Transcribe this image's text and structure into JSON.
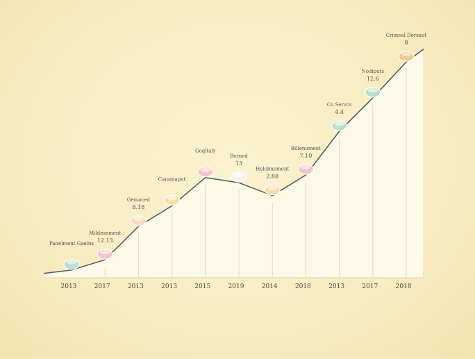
{
  "chart_data": {
    "type": "area",
    "categories": [
      "2013",
      "2017",
      "2013",
      "2013",
      "2015",
      "2019",
      "2014",
      "2018",
      "2013",
      "2017",
      "2018"
    ],
    "values": [
      3,
      7,
      20,
      28,
      39,
      37,
      32,
      40,
      57,
      70,
      84
    ],
    "ylim": [
      0,
      100
    ],
    "grid": false,
    "annotations": [
      {
        "label": "Panelment Gaeins",
        "value": ""
      },
      {
        "label": "Mildesement",
        "value": "12.13"
      },
      {
        "label": "Gemaced",
        "value": "8.18"
      },
      {
        "label": "Caramaput",
        "value": ""
      },
      {
        "label": "Gogitaly",
        "value": ""
      },
      {
        "label": "Berned",
        "value": "13"
      },
      {
        "label": "Helobnement",
        "value": "2.88"
      },
      {
        "label": "Bilienument",
        "value": "7.10"
      },
      {
        "label": "Co Servcs",
        "value": "4.4"
      },
      {
        "label": "Nodiputs",
        "value": "12.6"
      },
      {
        "label": "Crimeal Dorsaut",
        "value": "8"
      }
    ]
  },
  "colors": {
    "line": "#4f5d6b",
    "area": "#fcf9e6",
    "bubbles": [
      "#b7e0d2",
      "#f6c4c9",
      "#f7dcc0",
      "#f6e2a8",
      "#f6c4c9",
      "#f4f2ee",
      "#f6dda6",
      "#f6c4c9",
      "#b7e0d2",
      "#b7e0d2",
      "#f6c98e"
    ]
  }
}
